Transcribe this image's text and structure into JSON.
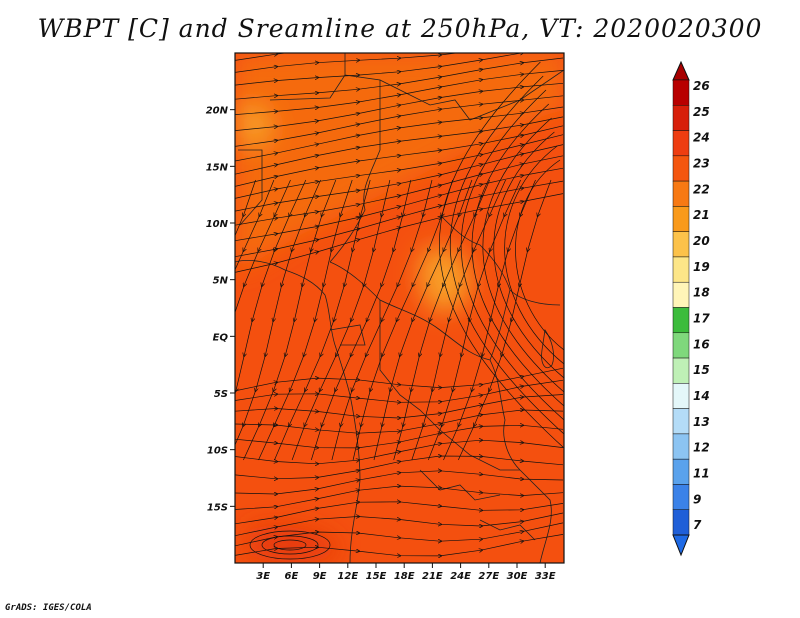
{
  "title": "WBPT [C] and Sreamline at 250hPa, VT: 2020020300",
  "credit": "GrADS: IGES/COLA",
  "map": {
    "lon_range": [
      0,
      35
    ],
    "lat_range": [
      -20,
      25
    ],
    "lat_ticks": [
      {
        "value": 20,
        "label": "20N"
      },
      {
        "value": 15,
        "label": "15N"
      },
      {
        "value": 10,
        "label": "10N"
      },
      {
        "value": 5,
        "label": "5N"
      },
      {
        "value": 0,
        "label": "EQ"
      },
      {
        "value": -5,
        "label": "5S"
      },
      {
        "value": -10,
        "label": "10S"
      },
      {
        "value": -15,
        "label": "15S"
      }
    ],
    "lon_ticks": [
      {
        "value": 3,
        "label": "3E"
      },
      {
        "value": 6,
        "label": "6E"
      },
      {
        "value": 9,
        "label": "9E"
      },
      {
        "value": 12,
        "label": "12E"
      },
      {
        "value": 15,
        "label": "15E"
      },
      {
        "value": 18,
        "label": "18E"
      },
      {
        "value": 21,
        "label": "21E"
      },
      {
        "value": 24,
        "label": "24E"
      },
      {
        "value": 27,
        "label": "27E"
      },
      {
        "value": 30,
        "label": "30E"
      },
      {
        "value": 33,
        "label": "33E"
      }
    ],
    "field_base_color": "#f4500f",
    "field_colors": {
      "band_22_23": "#f56a0b",
      "band_21_22": "#f89d25",
      "band_24_25": "#e63a10"
    }
  },
  "colorbar": {
    "labels": [
      "26",
      "25",
      "24",
      "23",
      "22",
      "21",
      "20",
      "19",
      "18",
      "17",
      "16",
      "15",
      "14",
      "13",
      "12",
      "11",
      "9",
      "7"
    ],
    "colors": [
      "#b80000",
      "#d71f0a",
      "#ee3d11",
      "#f4560f",
      "#f77913",
      "#f99a1b",
      "#fcc24a",
      "#fde688",
      "#fff5b8",
      "#3cbc3c",
      "#7fd87c",
      "#bff0b6",
      "#e4f7f9",
      "#b4dcf7",
      "#8cc4f2",
      "#5aa2ec",
      "#3b82e8",
      "#1f5fd8"
    ],
    "top_arrow_color": "#a80000",
    "bottom_arrow_color": "#1e6ae6"
  }
}
